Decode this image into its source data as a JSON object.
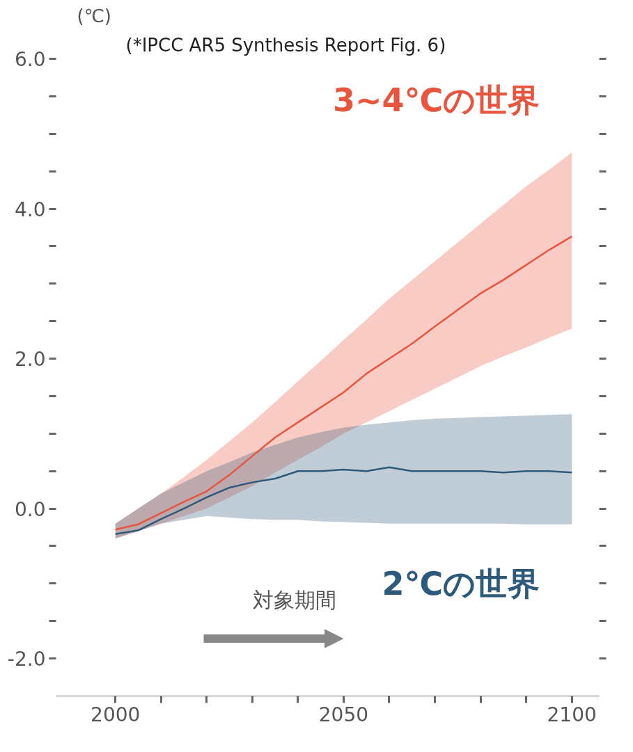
{
  "chart_data": {
    "type": "line",
    "ylabel": "(℃)",
    "annotations": [
      "(*IPCC AR5 Synthesis Report Fig. 6)",
      "対象期間"
    ],
    "x": [
      2000,
      2005,
      2010,
      2015,
      2020,
      2025,
      2030,
      2035,
      2040,
      2045,
      2050,
      2055,
      2060,
      2065,
      2070,
      2075,
      2080,
      2085,
      2090,
      2095,
      2100
    ],
    "series": [
      {
        "name": "3~4℃の世界",
        "color": "#e8553e",
        "values": [
          -0.28,
          -0.21,
          -0.06,
          0.09,
          0.23,
          0.45,
          0.7,
          0.95,
          1.15,
          1.35,
          1.55,
          1.8,
          2.0,
          2.2,
          2.43,
          2.65,
          2.87,
          3.05,
          3.25,
          3.45,
          3.63
        ],
        "lower": [
          -0.4,
          -0.3,
          -0.2,
          -0.1,
          0.0,
          0.15,
          0.3,
          0.48,
          0.65,
          0.82,
          1.0,
          1.15,
          1.3,
          1.45,
          1.6,
          1.75,
          1.9,
          2.03,
          2.15,
          2.28,
          2.4
        ],
        "upper": [
          -0.2,
          0.0,
          0.2,
          0.42,
          0.65,
          0.9,
          1.15,
          1.42,
          1.7,
          1.97,
          2.25,
          2.52,
          2.8,
          3.05,
          3.3,
          3.55,
          3.8,
          4.05,
          4.3,
          4.52,
          4.75
        ]
      },
      {
        "name": "2℃の世界",
        "color": "#2d5a7a",
        "values": [
          -0.34,
          -0.29,
          -0.14,
          0.0,
          0.15,
          0.28,
          0.35,
          0.4,
          0.5,
          0.5,
          0.52,
          0.5,
          0.55,
          0.5,
          0.5,
          0.5,
          0.5,
          0.48,
          0.5,
          0.5,
          0.48
        ],
        "lower": [
          -0.4,
          -0.3,
          -0.2,
          -0.15,
          -0.1,
          -0.12,
          -0.14,
          -0.15,
          -0.15,
          -0.17,
          -0.18,
          -0.19,
          -0.2,
          -0.2,
          -0.2,
          -0.2,
          -0.2,
          -0.2,
          -0.21,
          -0.21,
          -0.21
        ],
        "upper": [
          -0.2,
          0.0,
          0.2,
          0.35,
          0.5,
          0.62,
          0.75,
          0.85,
          0.95,
          1.02,
          1.08,
          1.12,
          1.15,
          1.18,
          1.2,
          1.21,
          1.22,
          1.23,
          1.24,
          1.25,
          1.26
        ]
      }
    ],
    "xlim": [
      1987,
      2106
    ],
    "ylim": [
      -2.5,
      6.0
    ],
    "xticks": [
      2000,
      {
        "value": 2010,
        "label": null
      },
      {
        "value": 2020,
        "label": null
      },
      {
        "value": 2030,
        "label": null
      },
      {
        "value": 2040,
        "label": null
      },
      2050,
      {
        "value": 2060,
        "label": null
      },
      {
        "value": 2070,
        "label": null
      },
      {
        "value": 2080,
        "label": null
      },
      {
        "value": 2090,
        "label": null
      },
      2100
    ],
    "yticks": [
      {
        "value": -2,
        "label": "-2.0"
      },
      {
        "value": -1.5,
        "label": null
      },
      {
        "value": -1,
        "label": null
      },
      {
        "value": -0.5,
        "label": null
      },
      {
        "value": 0,
        "label": "0.0"
      },
      {
        "value": 0.5,
        "label": null
      },
      {
        "value": 1,
        "label": null
      },
      {
        "value": 1.5,
        "label": null
      },
      {
        "value": 2,
        "label": "2.0"
      },
      {
        "value": 2.5,
        "label": null
      },
      {
        "value": 3,
        "label": null
      },
      {
        "value": 3.5,
        "label": null
      },
      {
        "value": 4,
        "label": "4.0"
      },
      {
        "value": 4.5,
        "label": null
      },
      {
        "value": 5,
        "label": null
      },
      {
        "value": 5.5,
        "label": null
      },
      {
        "value": 6,
        "label": "6.0"
      }
    ],
    "grid": false,
    "legend": "right",
    "marker": "none",
    "line_style": "solid"
  }
}
